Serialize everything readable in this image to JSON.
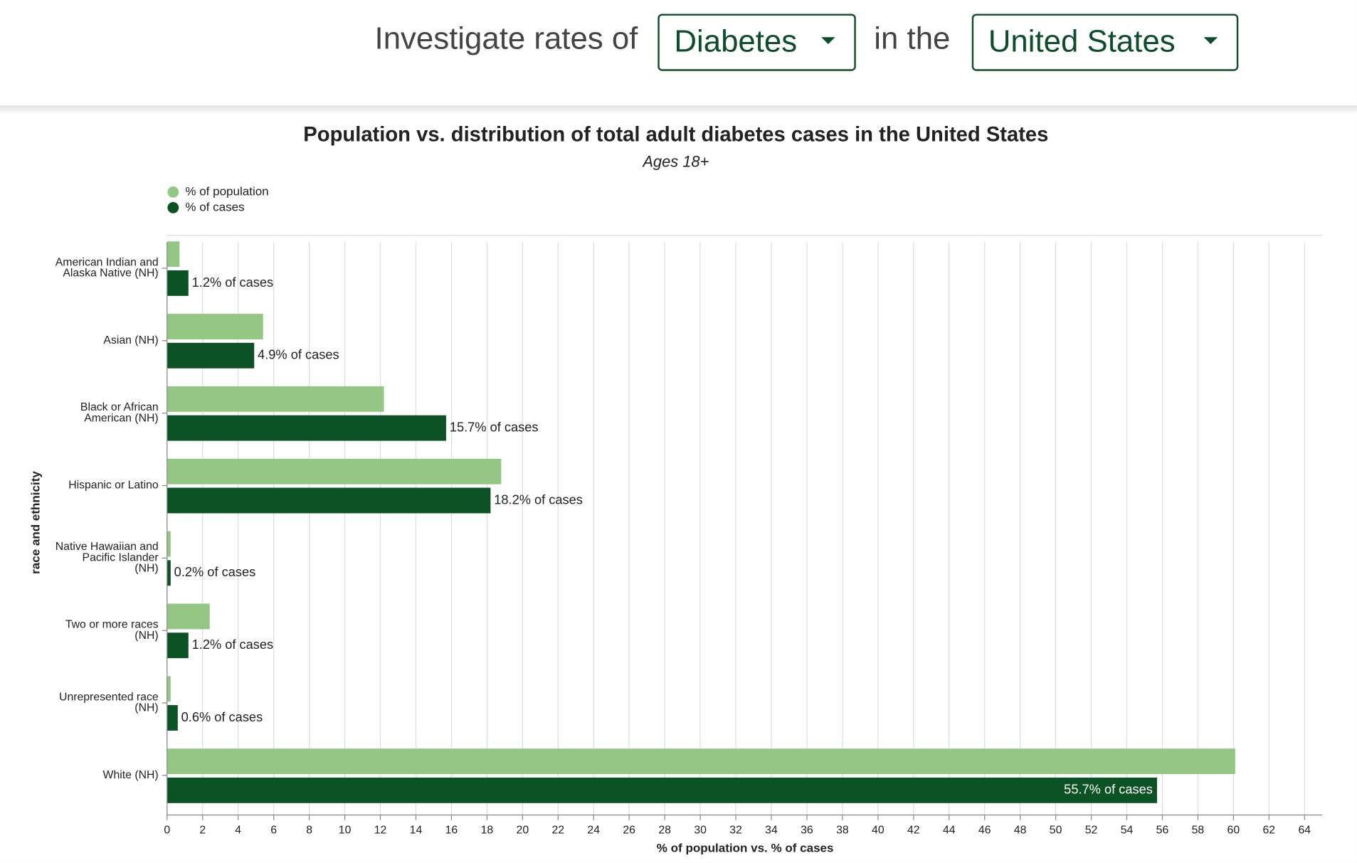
{
  "header": {
    "prompt": "Investigate rates of",
    "condition": "Diabetes",
    "connector": "in the",
    "location": "United States"
  },
  "chart_data": {
    "type": "bar",
    "orientation": "horizontal",
    "title": "Population vs. distribution of total adult diabetes cases in the United States",
    "subtitle": "Ages 18+",
    "x_label": "% of population vs. % of cases",
    "y_label": "race and ethnicity",
    "categories": [
      "American Indian and Alaska Native (NH)",
      "Asian (NH)",
      "Black or African American (NH)",
      "Hispanic or Latino",
      "Native Hawaiian and Pacific Islander (NH)",
      "Two or more races (NH)",
      "Unrepresented race (NH)",
      "White (NH)"
    ],
    "series": [
      {
        "name": "% of population",
        "color": "#94c684",
        "values": [
          0.7,
          5.4,
          12.2,
          18.8,
          0.2,
          2.4,
          0.2,
          60.1
        ]
      },
      {
        "name": "% of cases",
        "color": "#0b5224",
        "values": [
          1.2,
          4.9,
          15.7,
          18.2,
          0.2,
          1.2,
          0.6,
          55.7
        ],
        "value_labels": [
          "1.2% of cases",
          "4.9% of cases",
          "15.7% of cases",
          "18.2% of cases",
          "0.2% of cases",
          "1.2% of cases",
          "0.6% of cases",
          "55.7% of cases"
        ]
      }
    ],
    "xlim": [
      0,
      65
    ],
    "xticks": [
      0,
      2,
      4,
      6,
      8,
      10,
      12,
      14,
      16,
      18,
      20,
      22,
      24,
      26,
      28,
      30,
      32,
      34,
      36,
      38,
      40,
      42,
      44,
      46,
      48,
      50,
      52,
      54,
      56,
      58,
      60,
      62,
      64
    ],
    "grid": true,
    "legend": "top-left"
  }
}
